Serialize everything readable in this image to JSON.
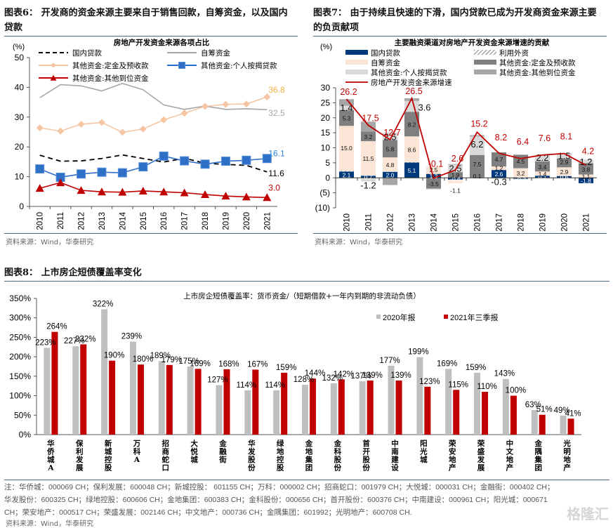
{
  "fig6": {
    "title_line1": "图表6： 开发商的资金来源主要来自于销售回款，自筹资金，以及国内",
    "title_line2": "贷款",
    "source": "资料来源：Wind，华泰研究"
  },
  "fig7": {
    "title_line1": "图表7： 由于持续且快速的下滑，国内贷款已成为开发商资金来源主要",
    "title_line2": "的负贡献项",
    "source": "资料来源：Wind，华泰研究"
  },
  "fig8": {
    "title": "图表8： 上市房企短债覆盖率变化",
    "note_lines": [
      "注：华侨城：000069 CH；保利发展：600048 CH；新城控股： 601155 CH；万科：000002 CH；招商蛇口：001979 CH；大悦城：000031 CH；金融街：000402 CH；",
      "华发股份：600325 CH；绿地控股：600606 CH；金地集团：600383 CH；金科股份：000656 CH；首开股份：600376 CH；中南建设：000961 CH；阳光城：000671",
      "CH；荣安地产：000517 CH；荣盛发展：002146 CH；中文地产：000736 CH；金隅集团：601992；光明地产：600708 CH."
    ],
    "source": "资料来源：Wind，华泰研究"
  },
  "watermark": "格隆汇",
  "chart_data": [
    {
      "id": "fig6",
      "type": "line",
      "title": "房地产开发资金来源各项占比",
      "ylabel": "(%)",
      "xlabel": "",
      "ylim": [
        0,
        50
      ],
      "yticks": [
        0,
        10,
        20,
        30,
        40,
        50
      ],
      "x": [
        "2010",
        "2011",
        "2012",
        "2013",
        "2014",
        "2015",
        "2016",
        "2017",
        "2018",
        "2019",
        "2020",
        "2021"
      ],
      "legend_position": "top",
      "series": [
        {
          "name": "国内贷款",
          "style": "dashed",
          "color": "#000000",
          "marker": "none",
          "values": [
            17.2,
            15.2,
            15.3,
            16.1,
            17.3,
            16.1,
            14.9,
            16.2,
            14.5,
            14.1,
            13.8,
            11.6
          ],
          "end_label": "11.6"
        },
        {
          "name": "自筹资金",
          "style": "solid",
          "color": "#a6a6a6",
          "marker": "none",
          "values": [
            36.5,
            40.9,
            40.5,
            38.8,
            41.3,
            39.2,
            34.1,
            32.6,
            33.7,
            32.6,
            32.8,
            32.5
          ],
          "end_label": "32.5"
        },
        {
          "name": "其他资金:定金及预收款",
          "style": "solid",
          "color": "#f6c6a4",
          "marker": "diamond",
          "values": [
            26.4,
            25.3,
            27.6,
            28.2,
            24.9,
            26.0,
            29.1,
            31.3,
            33.6,
            34.3,
            34.4,
            36.8
          ],
          "end_label": "36.8",
          "label_color": "#f5b041"
        },
        {
          "name": "其他资金:个人按揭贷款",
          "style": "solid",
          "color": "#2e6fc7",
          "marker": "square",
          "values": [
            12.6,
            9.8,
            10.9,
            11.5,
            11.3,
            13.3,
            16.9,
            15.3,
            14.2,
            15.2,
            15.5,
            16.1
          ],
          "end_label": "16.1",
          "label_color": "#2e86de"
        },
        {
          "name": "其他资金:其他到位资金",
          "style": "solid",
          "color": "#c00000",
          "marker": "triangle",
          "values": [
            6.1,
            8.0,
            5.4,
            4.9,
            4.8,
            5.2,
            4.9,
            4.6,
            4.0,
            3.5,
            3.2,
            3.0
          ],
          "end_label": "3.0",
          "label_color": "#c00000"
        }
      ]
    },
    {
      "id": "fig7",
      "type": "bar",
      "stacked": true,
      "title": "主要融资渠道对房地产开发资金来源增速的贡献",
      "ylabel": "(%)",
      "ylim": [
        -10,
        30
      ],
      "yticks": [
        -10,
        -5,
        0,
        5,
        10,
        15,
        20,
        25,
        30
      ],
      "ytick_labels": [
        "(10)",
        "(5)",
        "0",
        "5",
        "10",
        "15",
        "20",
        "25",
        "30"
      ],
      "categories": [
        "2010",
        "2011",
        "2012",
        "2013",
        "2014",
        "2015",
        "2016",
        "2017",
        "2018",
        "2019",
        "2020",
        "2021"
      ],
      "legend_position": "top",
      "series": [
        {
          "name": "国内贷款",
          "color": "#003a7d",
          "values": [
            2.1,
            0.7,
            2.0,
            5.1,
            1.3,
            -0.6,
            0.1,
            2.6,
            -0.3,
            0.7,
            0.6,
            -1.8
          ]
        },
        {
          "name": "利用外资",
          "color": "hatch",
          "values": [
            0.2,
            0.0,
            -0.1,
            0.1,
            -0.1,
            -0.1,
            0.0,
            0.0,
            0.0,
            0.0,
            0.0,
            0.0
          ]
        },
        {
          "name": "自筹资金",
          "color": "#fbe5d6",
          "values": [
            15.0,
            11.5,
            4.8,
            8.6,
            2.5,
            -1.1,
            0.0,
            1.2,
            3.2,
            1.4,
            2.9,
            1.1
          ]
        },
        {
          "name": "其他资金:定金及预收款",
          "color": "#7f7f7f",
          "values": [
            5.3,
            3.2,
            5.8,
            8.2,
            -3.5,
            1.9,
            7.5,
            4.7,
            4.5,
            3.4,
            2.9,
            3.8
          ]
        },
        {
          "name": "其他资金:个人按揭贷款",
          "color": "#d9d9d9",
          "values": [
            1.4,
            -1.2,
            2.5,
            3.6,
            -0.3,
            2.5,
            6.2,
            -0.3,
            -0.3,
            2.2,
            1.5,
            1.2
          ]
        },
        {
          "name": "其他资金:其他到位资金",
          "color": "#a6a6a6",
          "values": [
            2.2,
            3.3,
            -2.3,
            0.9,
            0.0,
            0.2,
            0.4,
            0.0,
            0.0,
            0.0,
            0.2,
            0.0
          ]
        }
      ],
      "line": {
        "name": "房地产开发资金来源增速",
        "color": "#c00000",
        "values": [
          26.2,
          17.5,
          12.7,
          26.5,
          -0.1,
          2.6,
          15.2,
          8.2,
          6.4,
          7.6,
          8.1,
          4.2
        ]
      },
      "labels": [
        [
          {
            "v": "2.1",
            "y": 1.05,
            "s": "sm",
            "c": "#fff"
          },
          {
            "v": "15.0",
            "y": 10,
            "s": "sm"
          },
          {
            "v": "5.3",
            "y": 20,
            "s": "sm"
          },
          {
            "v": "1.4",
            "y": 23.5,
            "s": "lg"
          }
        ],
        [
          {
            "v": "0.7",
            "y": 0.35,
            "s": "sm",
            "c": "#fff"
          },
          {
            "v": "11.5",
            "y": 6.5,
            "s": "sm"
          },
          {
            "v": "3.2",
            "y": 13.8,
            "s": "sm"
          },
          {
            "v": "-1.2",
            "y": -2.4,
            "s": "lg"
          }
        ],
        [
          {
            "v": "2.0",
            "y": 1.0,
            "s": "sm",
            "c": "#fff"
          },
          {
            "v": "4.8",
            "y": 4.4,
            "s": "sm"
          },
          {
            "v": "5.8",
            "y": 9.6,
            "s": "sm"
          },
          {
            "v": "2.5",
            "y": 13.8,
            "s": "lg"
          }
        ],
        [
          {
            "v": "5.1",
            "y": 2.5,
            "s": "sm",
            "c": "#fff"
          },
          {
            "v": "8.6",
            "y": 9.4,
            "s": "sm"
          },
          {
            "v": "8.2",
            "y": 17.8,
            "s": "sm"
          },
          {
            "v": "3.6",
            "y": 23.6,
            "s": "lg",
            "dx": 18
          }
        ],
        [
          {
            "v": "1.3",
            "y": 0.65,
            "s": "sm",
            "c": "#fff"
          },
          {
            "v": "2.5",
            "y": 2.7,
            "s": "sm"
          },
          {
            "v": "-3.5",
            "y": -1.9,
            "s": "sm"
          }
        ],
        [
          {
            "v": "-0.6",
            "y": -0.3,
            "s": "sm",
            "c": "#fff"
          },
          {
            "v": "1.9",
            "y": 0.95,
            "s": "sm"
          },
          {
            "v": "2.5",
            "y": 3.2,
            "s": "lg"
          },
          {
            "v": "-1.1",
            "y": -4.2,
            "s": "sm"
          }
        ],
        [
          {
            "v": "0.1",
            "y": 0.6,
            "s": "sm"
          },
          {
            "v": "7.5",
            "y": 4.6,
            "s": "sm"
          },
          {
            "v": "6.2",
            "y": 11.3,
            "s": "lg"
          }
        ],
        [
          {
            "v": "2.6",
            "y": 1.3,
            "s": "sm",
            "c": "#fff"
          },
          {
            "v": "1.2",
            "y": 3.3,
            "s": "sm"
          },
          {
            "v": "4.7",
            "y": 6.2,
            "s": "sm"
          },
          {
            "v": "-0.3",
            "y": -1.2,
            "s": "lg"
          }
        ],
        [
          {
            "v": "-0.3",
            "y": -0.3,
            "s": "sm",
            "c": "#fff"
          },
          {
            "v": "3.2",
            "y": 1.6,
            "s": "sm"
          },
          {
            "v": "4.5",
            "y": 5.5,
            "s": "sm"
          }
        ],
        [
          {
            "v": "0.7",
            "y": 0.35,
            "s": "sm",
            "c": "#fff"
          },
          {
            "v": "1.4",
            "y": 1.4,
            "s": "sm"
          },
          {
            "v": "3.4",
            "y": 3.7,
            "s": "sm"
          },
          {
            "v": "2.2",
            "y": 6.8,
            "s": "lg"
          }
        ],
        [
          {
            "v": "0.6",
            "y": 0.3,
            "s": "sm",
            "c": "#fff"
          },
          {
            "v": "2.9",
            "y": 2.0,
            "s": "sm"
          },
          {
            "v": "2.9",
            "y": 5.3,
            "s": "sm"
          },
          {
            "v": "1.5",
            "y": 7.4,
            "s": "lg"
          }
        ],
        [
          {
            "v": "-1.8",
            "y": -0.9,
            "s": "sm",
            "c": "#fff"
          },
          {
            "v": "1.1",
            "y": 0.55,
            "s": "sm"
          },
          {
            "v": "3.8",
            "y": 2.9,
            "s": "sm"
          },
          {
            "v": "1.2",
            "y": 5.4,
            "s": "lg"
          }
        ]
      ]
    },
    {
      "id": "fig8",
      "type": "bar",
      "title": "上市房企短债覆盖率：货币资金/（短期借款+一年内到期的非流动负债）",
      "ylim": [
        0,
        350
      ],
      "yticks": [
        0,
        50,
        100,
        150,
        200,
        250,
        300,
        350
      ],
      "ytick_suffix": "%",
      "legend_position": "top-right",
      "categories": [
        "华侨城A",
        "保利发展",
        "新城控股",
        "万科A",
        "招商蛇口",
        "大悦城",
        "金融街",
        "华发股份",
        "绿地控股",
        "金地集团",
        "金科股份",
        "首开股份",
        "中南建设",
        "阳光城",
        "荣安地产",
        "荣盛发展",
        "中文地产",
        "金隅集团",
        "光明地产"
      ],
      "series": [
        {
          "name": "2020年报",
          "color": "#bfbfbf",
          "values": [
            223,
            227,
            322,
            239,
            189,
            175,
            127,
            114,
            114,
            128,
            132,
            137,
            177,
            199,
            169,
            159,
            143,
            63,
            49
          ]
        },
        {
          "name": "2021年三季报",
          "color": "#c00000",
          "values": [
            264,
            232,
            190,
            180,
            179,
            169,
            168,
            167,
            159,
            144,
            142,
            139,
            139,
            123,
            115,
            110,
            100,
            51,
            41
          ]
        }
      ]
    }
  ]
}
